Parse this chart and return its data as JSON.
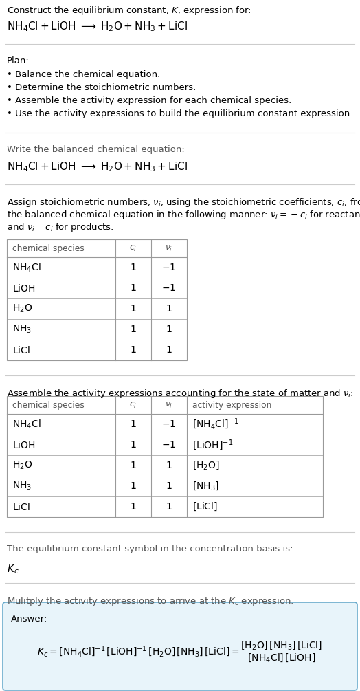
{
  "title_line1": "Construct the equilibrium constant, $K$, expression for:",
  "title_line2": "$\\mathrm{NH_4Cl + LiOH \\;\\longrightarrow\\; H_2O + NH_3 + LiCl}$",
  "plan_header": "Plan:",
  "plan_items": [
    "• Balance the chemical equation.",
    "• Determine the stoichiometric numbers.",
    "• Assemble the activity expression for each chemical species.",
    "• Use the activity expressions to build the equilibrium constant expression."
  ],
  "balanced_header": "Write the balanced chemical equation:",
  "balanced_eq": "$\\mathrm{NH_4Cl + LiOH \\;\\longrightarrow\\; H_2O + NH_3 + LiCl}$",
  "assign_text_lines": [
    "Assign stoichiometric numbers, $\\nu_i$, using the stoichiometric coefficients, $c_i$, from",
    "the balanced chemical equation in the following manner: $\\nu_i = -c_i$ for reactants",
    "and $\\nu_i = c_i$ for products:"
  ],
  "table1_headers": [
    "chemical species",
    "$c_i$",
    "$\\nu_i$"
  ],
  "table1_rows": [
    [
      "$\\mathrm{NH_4Cl}$",
      "1",
      "$-1$"
    ],
    [
      "$\\mathrm{LiOH}$",
      "1",
      "$-1$"
    ],
    [
      "$\\mathrm{H_2O}$",
      "1",
      "1"
    ],
    [
      "$\\mathrm{NH_3}$",
      "1",
      "1"
    ],
    [
      "$\\mathrm{LiCl}$",
      "1",
      "1"
    ]
  ],
  "assemble_header": "Assemble the activity expressions accounting for the state of matter and $\\nu_i$:",
  "table2_headers": [
    "chemical species",
    "$c_i$",
    "$\\nu_i$",
    "activity expression"
  ],
  "table2_rows": [
    [
      "$\\mathrm{NH_4Cl}$",
      "1",
      "$-1$",
      "$[\\mathrm{NH_4Cl}]^{-1}$"
    ],
    [
      "$\\mathrm{LiOH}$",
      "1",
      "$-1$",
      "$[\\mathrm{LiOH}]^{-1}$"
    ],
    [
      "$\\mathrm{H_2O}$",
      "1",
      "1",
      "$[\\mathrm{H_2O}]$"
    ],
    [
      "$\\mathrm{NH_3}$",
      "1",
      "1",
      "$[\\mathrm{NH_3}]$"
    ],
    [
      "$\\mathrm{LiCl}$",
      "1",
      "1",
      "$[\\mathrm{LiCl}]$"
    ]
  ],
  "kc_header": "The equilibrium constant symbol in the concentration basis is:",
  "kc_symbol": "$K_c$",
  "multiply_header": "Mulitply the activity expressions to arrive at the $K_c$ expression:",
  "answer_label": "Answer:",
  "answer_line1": "$K_c = [\\mathrm{NH_4Cl}]^{-1}\\,[\\mathrm{LiOH}]^{-1}\\,[\\mathrm{H_2O}]\\,[\\mathrm{NH_3}]\\,[\\mathrm{LiCl}] = \\dfrac{[\\mathrm{H_2O}]\\,[\\mathrm{NH_3}]\\,[\\mathrm{LiCl}]}{[\\mathrm{NH_4Cl}]\\,[\\mathrm{LiOH}]}$",
  "bg_color": "#ffffff",
  "text_color": "#000000",
  "gray_text": "#555555",
  "table_line_color": "#999999",
  "divider_color": "#cccccc",
  "answer_box_bg": "#e8f4fa",
  "answer_box_border": "#6aabcc"
}
